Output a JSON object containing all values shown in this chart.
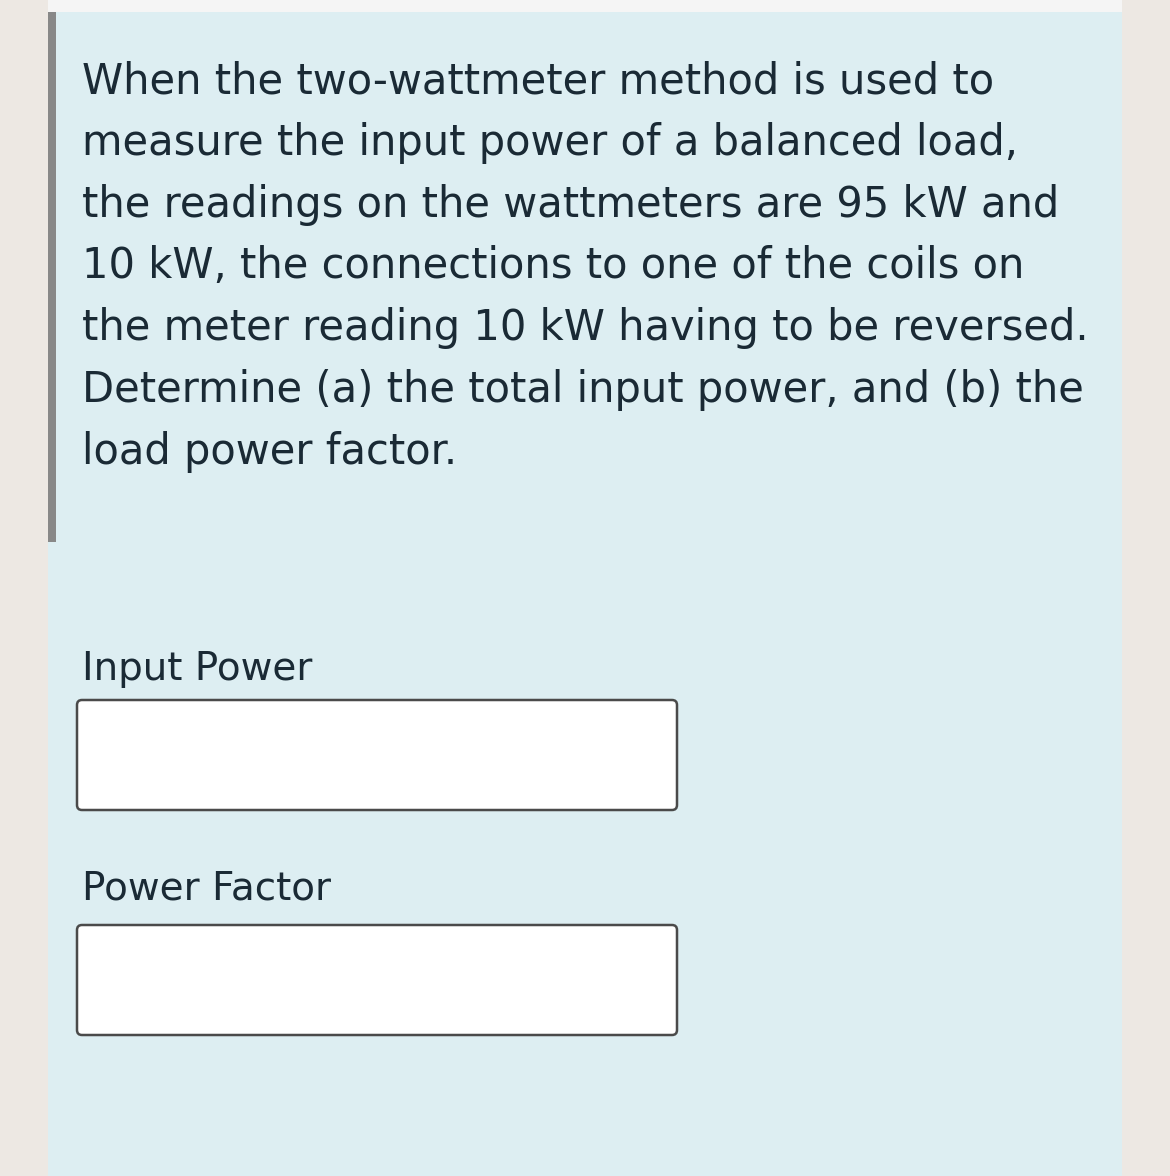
{
  "background_color": "#ddeef2",
  "left_margin_color": "#ede8e3",
  "sidebar_bar_color": "#888888",
  "right_margin_color": "#ede8e3",
  "top_bar_color": "#f5f5f5",
  "text_color": "#1a2a35",
  "main_text": "When the two-wattmeter method is used to\nmeasure the input power of a balanced load,\nthe readings on the wattmeters are 95 kW and\n10 kW, the connections to one of the coils on\nthe meter reading 10 kW having to be reversed.\nDetermine (a) the total input power, and (b) the\nload power factor.",
  "label1": "Input Power",
  "label2": "Power Factor",
  "box_fill": "#ffffff",
  "box_edge_color": "#4a4a4a",
  "text_fontsize": 30,
  "label_fontsize": 28,
  "figsize": [
    11.7,
    11.76
  ],
  "dpi": 100
}
